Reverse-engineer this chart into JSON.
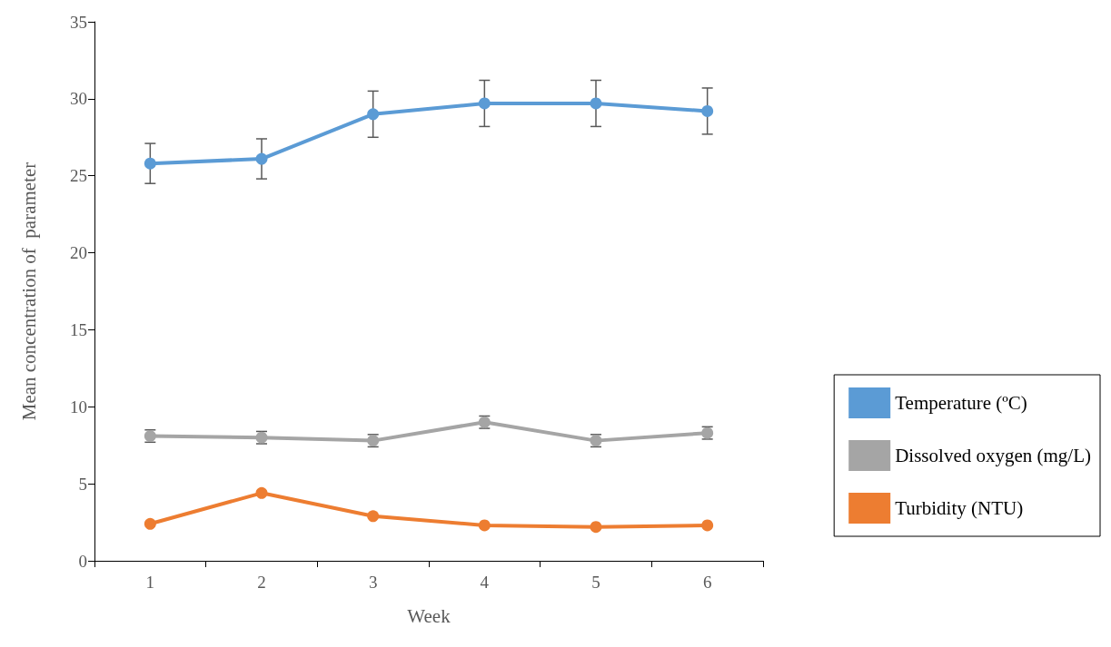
{
  "chart_data": {
    "type": "line",
    "xlabel": "Week",
    "ylabel": "Mean concentration of  parameter",
    "categories": [
      "1",
      "2",
      "3",
      "4",
      "5",
      "6"
    ],
    "series": [
      {
        "name": "Temperature (ºC)",
        "color": "#5b9bd5",
        "values": [
          25.8,
          26.1,
          29.0,
          29.7,
          29.7,
          29.2
        ],
        "errors": [
          1.3,
          1.3,
          1.5,
          1.5,
          1.5,
          1.5
        ]
      },
      {
        "name": "Dissolved oxygen (mg/L)",
        "color": "#a5a5a5",
        "values": [
          8.1,
          8.0,
          7.8,
          9.0,
          7.8,
          8.3
        ],
        "errors": [
          0.4,
          0.4,
          0.4,
          0.4,
          0.4,
          0.4
        ]
      },
      {
        "name": "Turbidity (NTU)",
        "color": "#ed7d31",
        "values": [
          2.4,
          4.4,
          2.9,
          2.3,
          2.2,
          2.3
        ]
      }
    ],
    "ylim": [
      0,
      35
    ],
    "yticks": [
      0,
      5,
      10,
      15,
      20,
      25,
      30,
      35
    ],
    "grid": false,
    "legend": "right",
    "marker": "circle",
    "line_style": "solid"
  }
}
